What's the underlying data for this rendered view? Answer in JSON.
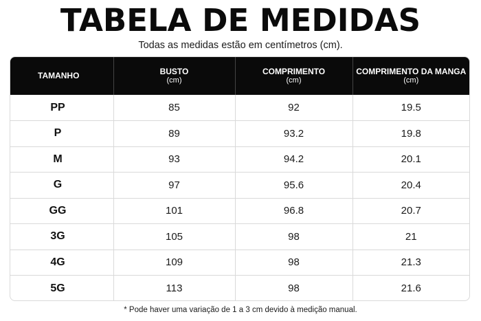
{
  "title": "TABELA DE MEDIDAS",
  "subtitle": "Todas as medidas estão em centímetros (cm).",
  "table": {
    "headers": [
      {
        "label": "TAMANHO",
        "unit": ""
      },
      {
        "label": "BUSTO",
        "unit": "(cm)"
      },
      {
        "label": "COMPRIMENTO",
        "unit": "(cm)"
      },
      {
        "label": "COMPRIMENTO DA MANGA",
        "unit": "(cm)"
      }
    ],
    "rows": [
      [
        "PP",
        "85",
        "92",
        "19.5"
      ],
      [
        "P",
        "89",
        "93.2",
        "19.8"
      ],
      [
        "M",
        "93",
        "94.2",
        "20.1"
      ],
      [
        "G",
        "97",
        "95.6",
        "20.4"
      ],
      [
        "GG",
        "101",
        "96.8",
        "20.7"
      ],
      [
        "3G",
        "105",
        "98",
        "21"
      ],
      [
        "4G",
        "109",
        "98",
        "21.3"
      ],
      [
        "5G",
        "113",
        "98",
        "21.6"
      ]
    ]
  },
  "note": "* Pode haver uma variação de 1 a 3 cm devido à medição manual."
}
